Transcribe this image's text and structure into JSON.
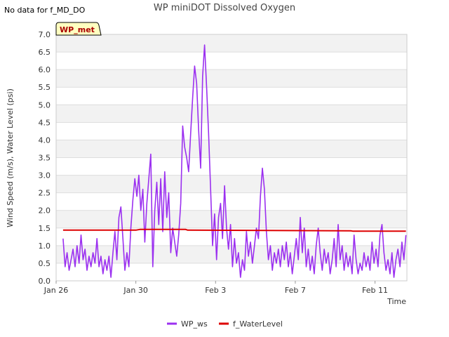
{
  "no_data_note": "No data for f_MD_DO",
  "badge_label": "WP_met",
  "chart_data": {
    "type": "line",
    "title": "WP miniDOT Dissolved Oxygen",
    "xlabel": "Time",
    "ylabel": "Wind Speed (m/s), Water Level (psi)",
    "x_range_days": [
      0,
      17.6
    ],
    "ylim": [
      0.0,
      7.0
    ],
    "y_ticks": [
      0.0,
      0.5,
      1.0,
      1.5,
      2.0,
      2.5,
      3.0,
      3.5,
      4.0,
      4.5,
      5.0,
      5.5,
      6.0,
      6.5,
      7.0
    ],
    "y_tick_labels": [
      "0.0",
      "0.5",
      "1.0",
      "1.5",
      "2.0",
      "2.5",
      "3.0",
      "3.5",
      "4.0",
      "4.5",
      "5.0",
      "5.5",
      "6.0",
      "6.5",
      "7.0"
    ],
    "x_ticks": [
      {
        "day": 0,
        "label": "Jan 26"
      },
      {
        "day": 4,
        "label": "Jan 30"
      },
      {
        "day": 8,
        "label": "Feb 3"
      },
      {
        "day": 12,
        "label": "Feb 7"
      },
      {
        "day": 16,
        "label": "Feb 11"
      }
    ],
    "grid": true,
    "legend_position": "bottom-center",
    "series": [
      {
        "name": "WP_ws",
        "color": "#9b30f0",
        "points": [
          [
            0.35,
            1.2
          ],
          [
            0.45,
            0.4
          ],
          [
            0.55,
            0.8
          ],
          [
            0.65,
            0.3
          ],
          [
            0.75,
            0.6
          ],
          [
            0.85,
            0.9
          ],
          [
            0.95,
            0.4
          ],
          [
            1.05,
            1.0
          ],
          [
            1.15,
            0.5
          ],
          [
            1.25,
            1.3
          ],
          [
            1.35,
            0.6
          ],
          [
            1.45,
            0.9
          ],
          [
            1.55,
            0.3
          ],
          [
            1.65,
            0.7
          ],
          [
            1.75,
            0.4
          ],
          [
            1.85,
            0.8
          ],
          [
            1.95,
            0.5
          ],
          [
            2.05,
            1.2
          ],
          [
            2.15,
            0.4
          ],
          [
            2.25,
            0.7
          ],
          [
            2.35,
            0.2
          ],
          [
            2.45,
            0.6
          ],
          [
            2.55,
            0.3
          ],
          [
            2.65,
            0.7
          ],
          [
            2.75,
            0.1
          ],
          [
            2.85,
            0.8
          ],
          [
            2.95,
            1.4
          ],
          [
            3.05,
            0.6
          ],
          [
            3.15,
            1.8
          ],
          [
            3.25,
            2.1
          ],
          [
            3.35,
            1.2
          ],
          [
            3.45,
            0.3
          ],
          [
            3.55,
            0.8
          ],
          [
            3.65,
            0.4
          ],
          [
            3.75,
            1.5
          ],
          [
            3.85,
            2.3
          ],
          [
            3.95,
            2.9
          ],
          [
            4.05,
            2.4
          ],
          [
            4.15,
            3.0
          ],
          [
            4.25,
            2.0
          ],
          [
            4.35,
            2.6
          ],
          [
            4.45,
            1.1
          ],
          [
            4.55,
            2.2
          ],
          [
            4.65,
            2.9
          ],
          [
            4.75,
            3.6
          ],
          [
            4.85,
            0.4
          ],
          [
            4.95,
            2.0
          ],
          [
            5.05,
            2.8
          ],
          [
            5.15,
            1.6
          ],
          [
            5.25,
            2.9
          ],
          [
            5.35,
            1.4
          ],
          [
            5.45,
            3.1
          ],
          [
            5.55,
            1.8
          ],
          [
            5.65,
            2.5
          ],
          [
            5.75,
            0.8
          ],
          [
            5.85,
            1.5
          ],
          [
            5.95,
            1.1
          ],
          [
            6.05,
            0.7
          ],
          [
            6.15,
            1.3
          ],
          [
            6.25,
            2.2
          ],
          [
            6.35,
            4.4
          ],
          [
            6.45,
            3.8
          ],
          [
            6.55,
            3.5
          ],
          [
            6.65,
            3.1
          ],
          [
            6.75,
            4.2
          ],
          [
            6.85,
            5.2
          ],
          [
            6.95,
            6.1
          ],
          [
            7.05,
            5.6
          ],
          [
            7.15,
            4.3
          ],
          [
            7.25,
            3.2
          ],
          [
            7.35,
            5.8
          ],
          [
            7.45,
            6.7
          ],
          [
            7.55,
            5.5
          ],
          [
            7.65,
            4.2
          ],
          [
            7.75,
            2.6
          ],
          [
            7.85,
            1.0
          ],
          [
            7.95,
            1.9
          ],
          [
            8.05,
            0.6
          ],
          [
            8.15,
            1.8
          ],
          [
            8.25,
            2.2
          ],
          [
            8.35,
            1.2
          ],
          [
            8.45,
            2.7
          ],
          [
            8.55,
            1.5
          ],
          [
            8.65,
            0.9
          ],
          [
            8.75,
            1.6
          ],
          [
            8.85,
            0.4
          ],
          [
            8.95,
            1.2
          ],
          [
            9.05,
            0.5
          ],
          [
            9.15,
            0.8
          ],
          [
            9.25,
            0.1
          ],
          [
            9.35,
            0.6
          ],
          [
            9.45,
            0.3
          ],
          [
            9.55,
            1.4
          ],
          [
            9.65,
            0.7
          ],
          [
            9.75,
            1.1
          ],
          [
            9.85,
            0.5
          ],
          [
            9.95,
            1.0
          ],
          [
            10.05,
            1.5
          ],
          [
            10.15,
            1.2
          ],
          [
            10.25,
            2.4
          ],
          [
            10.35,
            3.2
          ],
          [
            10.45,
            2.6
          ],
          [
            10.55,
            1.4
          ],
          [
            10.65,
            0.6
          ],
          [
            10.75,
            1.0
          ],
          [
            10.85,
            0.3
          ],
          [
            10.95,
            0.8
          ],
          [
            11.05,
            0.5
          ],
          [
            11.15,
            0.9
          ],
          [
            11.25,
            0.4
          ],
          [
            11.35,
            1.0
          ],
          [
            11.45,
            0.6
          ],
          [
            11.55,
            1.1
          ],
          [
            11.65,
            0.4
          ],
          [
            11.75,
            0.8
          ],
          [
            11.85,
            0.2
          ],
          [
            11.95,
            0.7
          ],
          [
            12.05,
            1.2
          ],
          [
            12.15,
            0.6
          ],
          [
            12.25,
            1.8
          ],
          [
            12.35,
            0.8
          ],
          [
            12.45,
            1.5
          ],
          [
            12.55,
            0.4
          ],
          [
            12.65,
            0.9
          ],
          [
            12.75,
            0.3
          ],
          [
            12.85,
            0.7
          ],
          [
            12.95,
            0.2
          ],
          [
            13.05,
            1.0
          ],
          [
            13.15,
            1.5
          ],
          [
            13.25,
            0.8
          ],
          [
            13.35,
            0.3
          ],
          [
            13.45,
            0.9
          ],
          [
            13.55,
            0.5
          ],
          [
            13.65,
            0.8
          ],
          [
            13.75,
            0.2
          ],
          [
            13.85,
            0.6
          ],
          [
            13.95,
            1.2
          ],
          [
            14.05,
            0.4
          ],
          [
            14.15,
            1.6
          ],
          [
            14.25,
            0.6
          ],
          [
            14.35,
            1.0
          ],
          [
            14.45,
            0.3
          ],
          [
            14.55,
            0.8
          ],
          [
            14.65,
            0.4
          ],
          [
            14.75,
            0.7
          ],
          [
            14.85,
            0.2
          ],
          [
            14.95,
            1.3
          ],
          [
            15.05,
            0.6
          ],
          [
            15.15,
            0.2
          ],
          [
            15.25,
            0.5
          ],
          [
            15.35,
            0.3
          ],
          [
            15.45,
            0.8
          ],
          [
            15.55,
            0.4
          ],
          [
            15.65,
            0.7
          ],
          [
            15.75,
            0.3
          ],
          [
            15.85,
            1.1
          ],
          [
            15.95,
            0.5
          ],
          [
            16.05,
            0.9
          ],
          [
            16.15,
            0.4
          ],
          [
            16.25,
            1.3
          ],
          [
            16.35,
            1.6
          ],
          [
            16.45,
            0.8
          ],
          [
            16.55,
            0.3
          ],
          [
            16.65,
            0.6
          ],
          [
            16.75,
            0.2
          ],
          [
            16.85,
            0.8
          ],
          [
            16.95,
            0.1
          ],
          [
            17.05,
            0.6
          ],
          [
            17.15,
            0.9
          ],
          [
            17.25,
            0.4
          ],
          [
            17.35,
            1.1
          ],
          [
            17.45,
            0.6
          ],
          [
            17.55,
            1.3
          ]
        ]
      },
      {
        "name": "f_WaterLevel",
        "color": "#dd0000",
        "points": [
          [
            0.35,
            1.44
          ],
          [
            4.0,
            1.44
          ],
          [
            4.2,
            1.46
          ],
          [
            6.5,
            1.46
          ],
          [
            6.6,
            1.44
          ],
          [
            14.8,
            1.42
          ],
          [
            14.9,
            1.41
          ],
          [
            17.55,
            1.41
          ]
        ]
      }
    ]
  }
}
